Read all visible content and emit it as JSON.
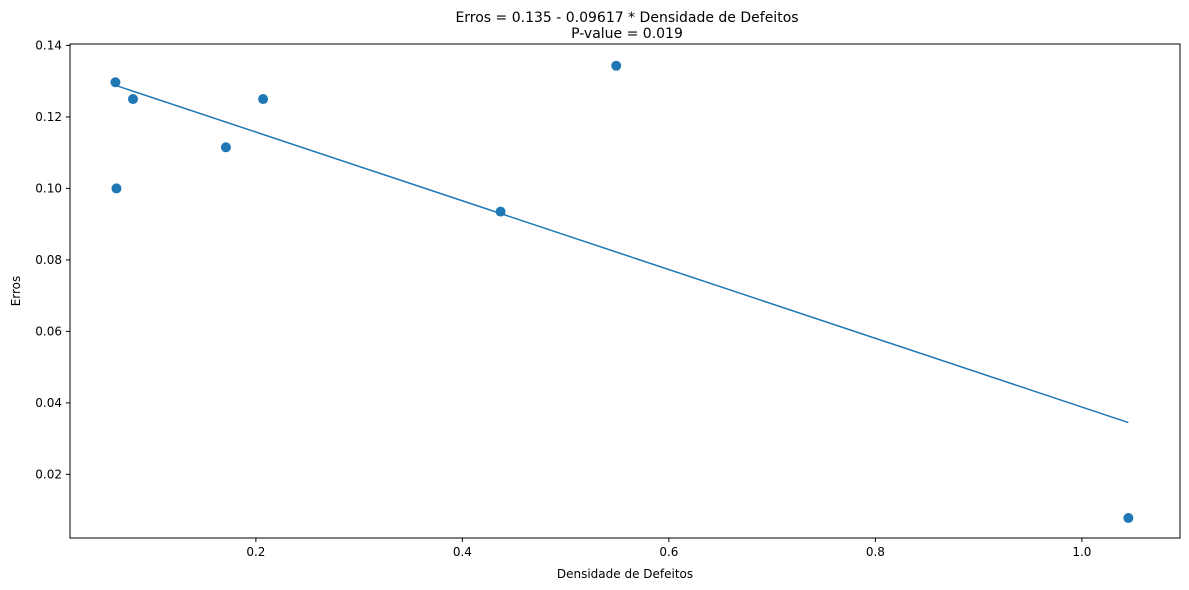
{
  "chart_data": {
    "type": "scatter",
    "title": "Erros = 0.135 - 0.09617 * Densidade de Defeitos",
    "subtitle": "P-value = 0.019",
    "xlabel": "Densidade de Defeitos",
    "ylabel": "Erros",
    "xlim": [
      0.02,
      1.095
    ],
    "ylim": [
      0.0022,
      0.1404
    ],
    "xticks": [
      0.2,
      0.4,
      0.6,
      0.8,
      1.0
    ],
    "xtick_labels": [
      "0.2",
      "0.4",
      "0.6",
      "0.8",
      "1.0"
    ],
    "yticks": [
      0.02,
      0.04,
      0.06,
      0.08,
      0.1,
      0.12,
      0.14
    ],
    "ytick_labels": [
      "0.02",
      "0.04",
      "0.06",
      "0.08",
      "0.10",
      "0.12",
      "0.14"
    ],
    "grid": false,
    "color": "#1f77b4",
    "points": [
      {
        "x": 0.064,
        "y": 0.1297
      },
      {
        "x": 0.065,
        "y": 0.1
      },
      {
        "x": 0.081,
        "y": 0.125
      },
      {
        "x": 0.171,
        "y": 0.1115
      },
      {
        "x": 0.207,
        "y": 0.125
      },
      {
        "x": 0.437,
        "y": 0.0935
      },
      {
        "x": 0.549,
        "y": 0.1343
      },
      {
        "x": 1.045,
        "y": 0.0078
      }
    ],
    "fit_line": {
      "intercept": 0.135,
      "slope": -0.09617,
      "x": [
        0.064,
        1.045
      ]
    }
  }
}
